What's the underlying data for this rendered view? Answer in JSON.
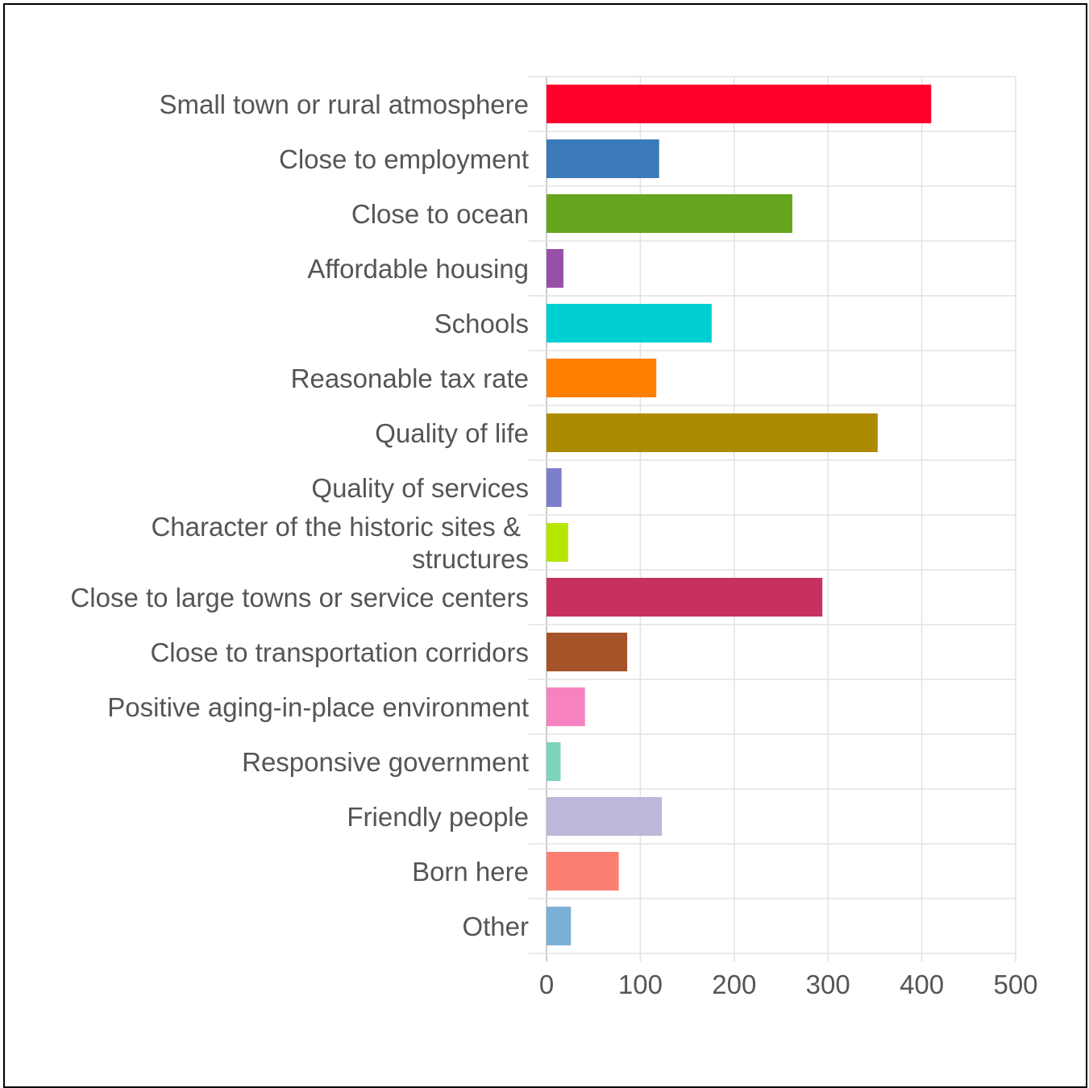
{
  "chart_data": {
    "type": "bar",
    "orientation": "horizontal",
    "title": "",
    "xlabel": "",
    "ylabel": "",
    "xlim": [
      0,
      500
    ],
    "ticks": [
      "0",
      "100",
      "200",
      "300",
      "400",
      "500"
    ],
    "grid": true,
    "legend": "none",
    "categories": [
      "Small town or rural atmosphere",
      "Close to employment",
      "Close to ocean",
      "Affordable housing",
      "Schools",
      "Reasonable tax rate",
      "Quality of life",
      "Quality of services",
      "Character of the historic sites & structures",
      "Close to large towns or service centers",
      "Close to transportation corridors",
      "Positive aging-in-place environment",
      "Responsive government",
      "Friendly people",
      "Born here",
      "Other"
    ],
    "values": [
      410,
      120,
      262,
      18,
      176,
      117,
      353,
      16,
      23,
      294,
      86,
      41,
      15,
      123,
      77,
      26
    ],
    "colors": [
      "#ff002b",
      "#3a7ab8",
      "#66a61e",
      "#9650a8",
      "#00d0d2",
      "#ff7f00",
      "#ad8b00",
      "#7b7ecb",
      "#b4e600",
      "#c7315f",
      "#a6532a",
      "#f782c2",
      "#7dd3bc",
      "#bcb8da",
      "#fb8072",
      "#7bb0d7"
    ]
  }
}
